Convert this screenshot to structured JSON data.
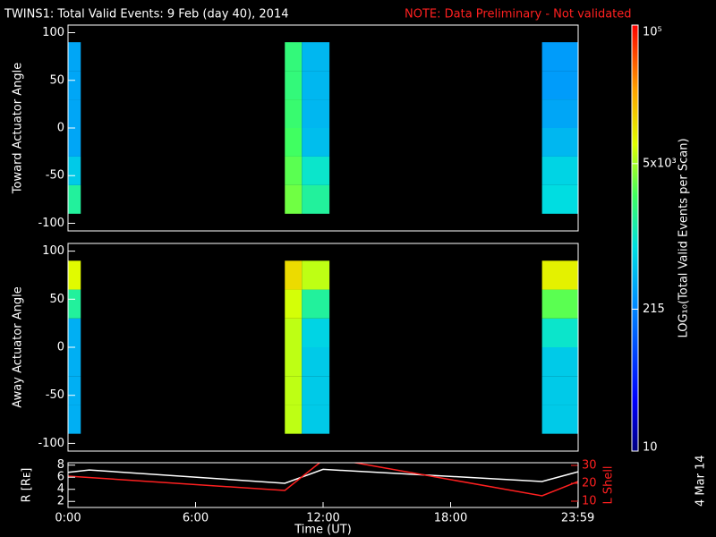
{
  "header": {
    "title": "TWINS1: Total Valid Events:  9 Feb (day  40), 2014",
    "note": "NOTE: Data Preliminary - Not validated",
    "note_color": "#ff2020",
    "stamp": "4 Mar 14"
  },
  "colorbar": {
    "label": "LOG₁₀(Total Valid Events per Scan)",
    "zlim": [
      10,
      100000
    ],
    "log": true,
    "zticks": [
      10,
      215,
      {
        "value": 5000,
        "label": "5x10³"
      },
      {
        "value": 100000,
        "label": "10⁵"
      }
    ],
    "colormap": [
      [
        0,
        "#00007f"
      ],
      [
        0.12,
        "#0000ff"
      ],
      [
        0.35,
        "#0090ff"
      ],
      [
        0.48,
        "#00e0e0"
      ],
      [
        0.6,
        "#40ff60"
      ],
      [
        0.72,
        "#e0ff00"
      ],
      [
        0.85,
        "#ffa000"
      ],
      [
        1,
        "#ff0000"
      ]
    ]
  },
  "chart_data": [
    {
      "type": "heatmap",
      "ylabel": "Toward Actuator Angle",
      "xlim": [
        0,
        24
      ],
      "ylim": [
        -108,
        108
      ],
      "yticks": [
        -100,
        -50,
        0,
        50,
        100
      ],
      "time_bins": [
        0,
        0.6,
        10.2,
        11.0,
        12.3,
        22.3,
        24
      ],
      "angle_bins": [
        -90,
        -60,
        -30,
        0,
        30,
        60,
        90
      ],
      "values": [
        [
          1500,
          600,
          350,
          350,
          350,
          350
        ],
        [
          null,
          null,
          null,
          null,
          null,
          null
        ],
        [
          3500,
          3000,
          2500,
          2200,
          2000,
          2000
        ],
        [
          1500,
          1000,
          500,
          450,
          450,
          450
        ],
        [
          null,
          null,
          null,
          null,
          null,
          null
        ],
        [
          800,
          700,
          450,
          350,
          300,
          300
        ]
      ]
    },
    {
      "type": "heatmap",
      "ylabel": "Away Actuator Angle",
      "xlim": [
        0,
        24
      ],
      "ylim": [
        -108,
        108
      ],
      "yticks": [
        -100,
        -50,
        0,
        50,
        100
      ],
      "time_bins": [
        0,
        0.6,
        10.2,
        11.0,
        12.3,
        22.3,
        24
      ],
      "angle_bins": [
        -90,
        -60,
        -30,
        0,
        30,
        60,
        90
      ],
      "values": [
        [
          400,
          400,
          400,
          400,
          1500,
          8000
        ],
        [
          null,
          null,
          null,
          null,
          null,
          null
        ],
        [
          6000,
          6000,
          6000,
          6000,
          7000,
          12000
        ],
        [
          600,
          600,
          600,
          700,
          1500,
          6000
        ],
        [
          null,
          null,
          null,
          null,
          null,
          null
        ],
        [
          600,
          600,
          600,
          1000,
          3000,
          9000
        ]
      ]
    },
    {
      "type": "line",
      "ylabel": "R [Rᴇ]",
      "y2label": "L Shell",
      "xlabel": "Time (UT)",
      "xlim": [
        0,
        24
      ],
      "ylim": [
        1,
        8.4
      ],
      "yticks": [
        2,
        4,
        6,
        8
      ],
      "y2lim": [
        6.5,
        31.5
      ],
      "y2ticks": [
        10,
        20,
        30
      ],
      "y2color": "#ff2020",
      "xticks": [
        {
          "value": 0,
          "label": "0:00"
        },
        {
          "value": 6,
          "label": "6:00"
        },
        {
          "value": 12,
          "label": "12:00"
        },
        {
          "value": 18,
          "label": "18:00"
        },
        {
          "value": 23.983,
          "label": "23:59"
        }
      ],
      "series": [
        {
          "color": "#ffffff",
          "x": [
            0,
            1,
            10.2,
            12,
            22.3,
            24
          ],
          "values": [
            6.8,
            7.2,
            5.0,
            7.3,
            5.3,
            6.9
          ]
        },
        {
          "color": "#ff2020",
          "axis": "y2",
          "x": [
            0,
            10.2,
            12,
            12.8,
            22.3,
            24
          ],
          "values": [
            24,
            16,
            33,
            33,
            13,
            21
          ]
        }
      ]
    }
  ]
}
